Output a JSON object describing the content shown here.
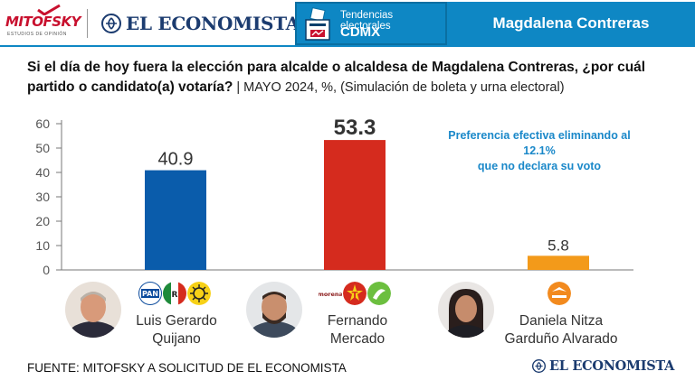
{
  "header": {
    "brand1": "MITOFSKY",
    "brand1_tagline": "ESTUDIOS DE OPINIÓN",
    "brand2": "EL ECONOMISTA",
    "section_title": "Tendencias electorales",
    "section_sub": "CDMX",
    "municipality": "Magdalena Contreras"
  },
  "question": {
    "text": "Si el día de hoy fuera la elección para alcalde o alcaldesa de Magdalena Contreras, ¿por cuál partido o candidato(a) votaría?",
    "meta": " | MAYO 2024, %, (Simulación de boleta y urna electoral)"
  },
  "chart_data": {
    "type": "bar",
    "categories": [
      "Luis Gerardo Quijano",
      "Fernando Mercado",
      "Daniela Nitza Garduño Alvarado"
    ],
    "values": [
      40.9,
      53.3,
      5.8
    ],
    "value_labels": [
      "40.9",
      "53.3",
      "5.8"
    ],
    "colors": [
      "#0a5cab",
      "#d52b1e",
      "#f39a1a"
    ],
    "yticks": [
      "0",
      "10",
      "20",
      "30",
      "40",
      "50",
      "60"
    ],
    "ylim": [
      0,
      60
    ],
    "note_line1": "Preferencia efectiva eliminando al 12.1%",
    "note_line2": "que no declara su voto"
  },
  "candidates": [
    {
      "name_line1": "Luis Gerardo",
      "name_line2": "Quijano",
      "parties": [
        "PAN",
        "PRI",
        "PRD"
      ]
    },
    {
      "name_line1": "Fernando",
      "name_line2": "Mercado",
      "parties": [
        "morena",
        "PT",
        "PVEM"
      ]
    },
    {
      "name_line1": "Daniela Nitza",
      "name_line2": "Garduño Alvarado",
      "parties": [
        "MOVIMIENTO CIUDADANO"
      ]
    }
  ],
  "footer": {
    "source": "FUENTE: MITOFSKY A SOLICITUD DE EL ECONOMISTA",
    "brand": "EL ECONOMISTA"
  }
}
